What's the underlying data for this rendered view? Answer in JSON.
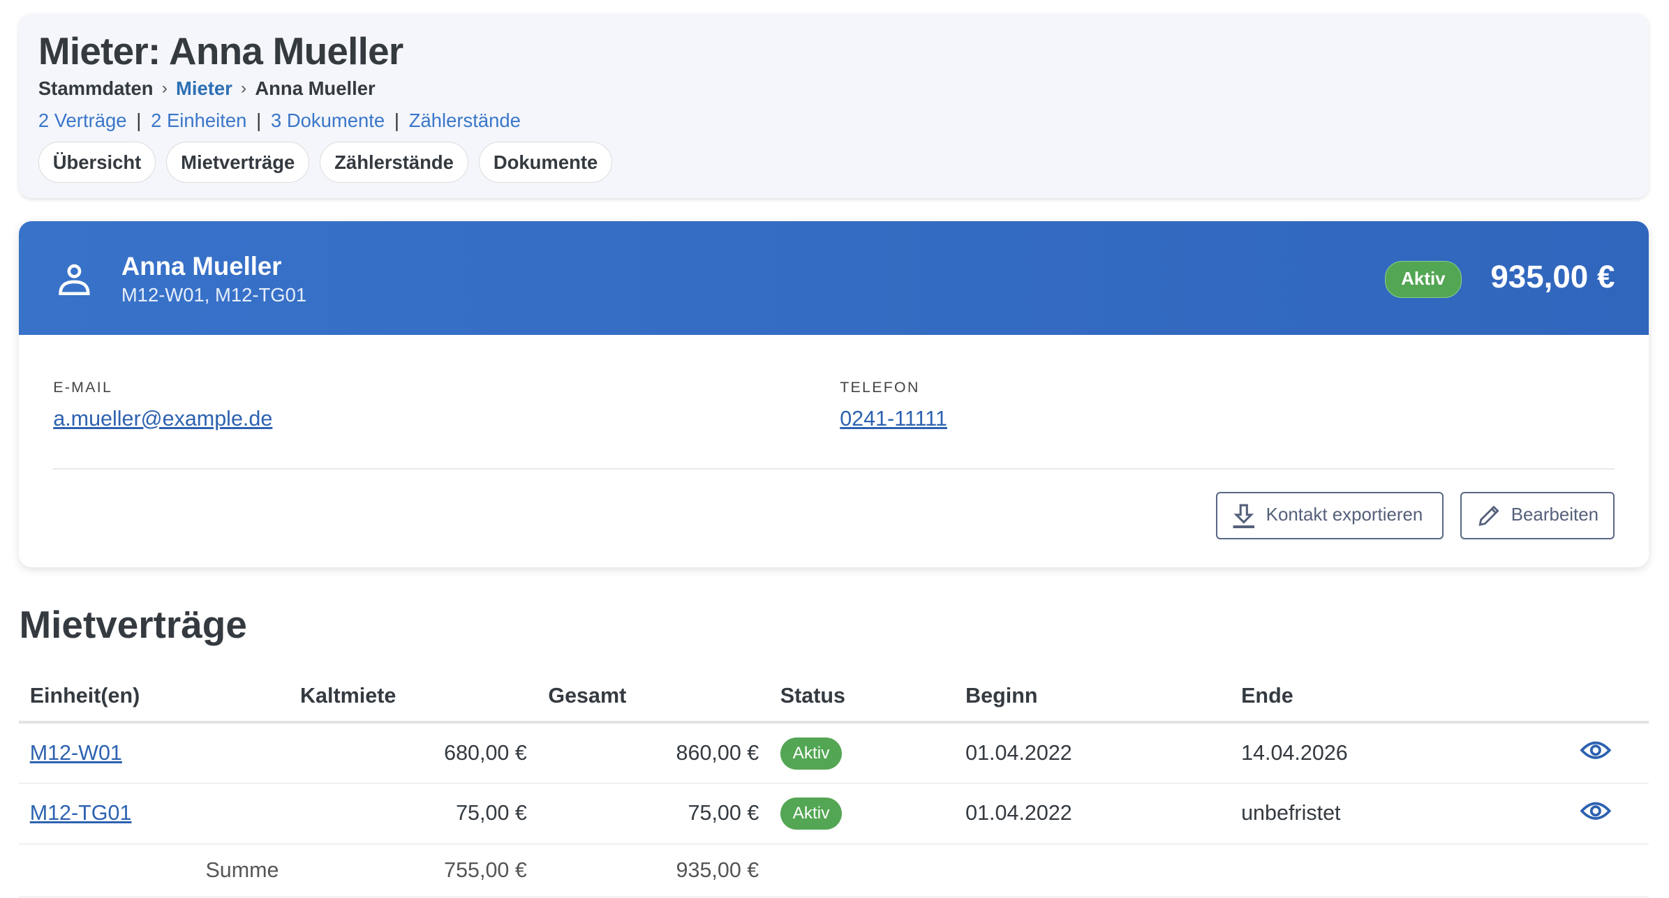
{
  "header": {
    "title": "Mieter: Anna Mueller",
    "breadcrumb": [
      "Stammdaten",
      "Mieter",
      "Anna Mueller"
    ],
    "links": [
      "2 Verträge",
      "2 Einheiten",
      "3 Dokumente",
      "Zählerstände"
    ],
    "tabs": [
      "Übersicht",
      "Mietverträge",
      "Zählerstände",
      "Dokumente"
    ]
  },
  "tenant": {
    "name": "Anna Mueller",
    "units": "M12-W01, M12-TG01",
    "status": "Aktiv",
    "total": "935,00 €",
    "email_label": "E-MAIL",
    "email": "a.mueller@example.de",
    "phone_label": "TELEFON",
    "phone": "0241-11111",
    "export_label": "Kontakt exportieren",
    "edit_label": "Bearbeiten"
  },
  "colors": {
    "primary": "#3670c6",
    "success": "#53a653",
    "link": "#2d62b0"
  },
  "contracts": {
    "title": "Mietverträge",
    "columns": [
      "Einheit(en)",
      "Kaltmiete",
      "Gesamt",
      "Status",
      "Beginn",
      "Ende"
    ],
    "rows": [
      {
        "unit": "M12-W01",
        "kalt": "680,00 €",
        "gesamt": "860,00 €",
        "status": "Aktiv",
        "beginn": "01.04.2022",
        "ende": "14.04.2026"
      },
      {
        "unit": "M12-TG01",
        "kalt": "75,00 €",
        "gesamt": "75,00 €",
        "status": "Aktiv",
        "beginn": "01.04.2022",
        "ende": "unbefristet"
      }
    ],
    "sum": {
      "label": "Summe",
      "kalt": "755,00 €",
      "gesamt": "935,00 €"
    }
  }
}
